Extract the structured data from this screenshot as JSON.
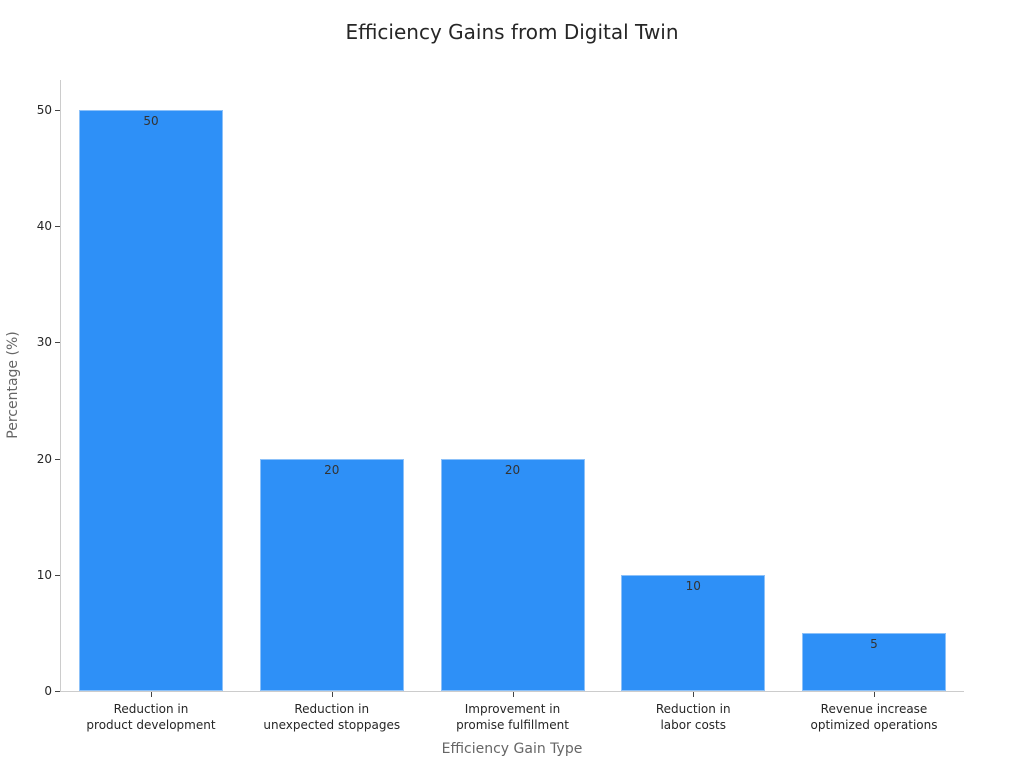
{
  "chart_data": {
    "type": "bar",
    "title": "Efficiency Gains from Digital Twin",
    "xlabel": "Efficiency Gain Type",
    "ylabel": "Percentage (%)",
    "categories": [
      "Reduction in\nproduct development",
      "Reduction in\nunexpected stoppages",
      "Improvement in\npromise fulfillment",
      "Reduction in\nlabor costs",
      "Revenue increase\noptimized operations"
    ],
    "values": [
      50,
      20,
      20,
      10,
      5
    ],
    "value_labels": [
      "50",
      "20",
      "20",
      "10",
      "5"
    ],
    "yticks": [
      "0",
      "10",
      "20",
      "30",
      "40",
      "50"
    ],
    "ylim": [
      0,
      52.6
    ],
    "grid": false,
    "legend": null,
    "bar_color": "#2e90f7"
  }
}
